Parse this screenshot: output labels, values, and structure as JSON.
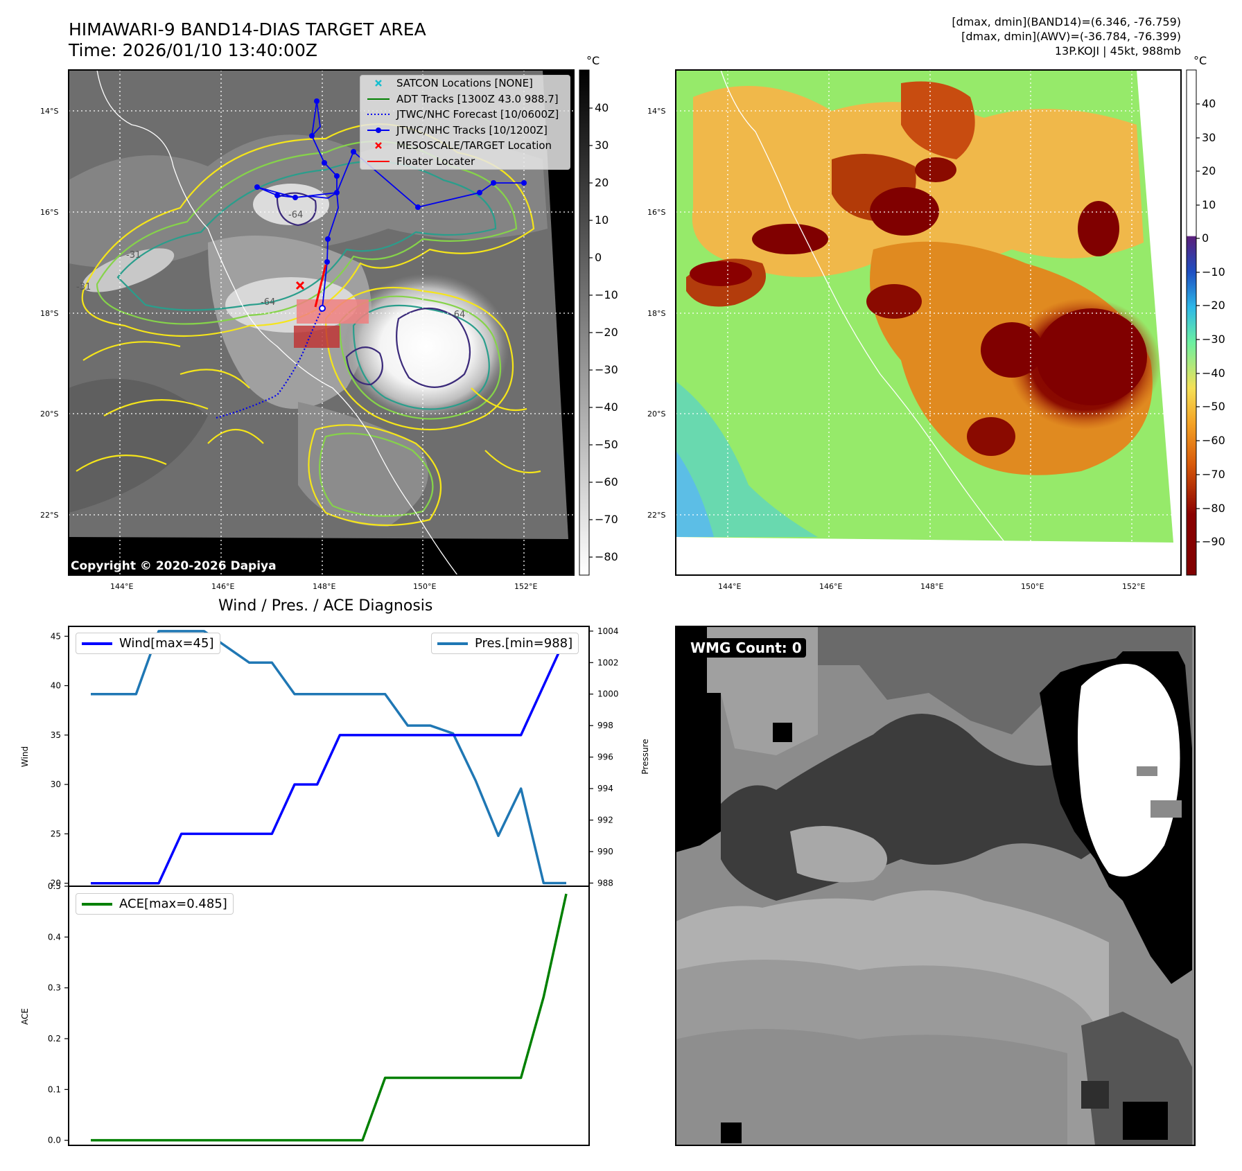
{
  "header": {
    "title_line1": "HIMAWARI-9 BAND14-DIAS TARGET AREA",
    "title_line2": "Time: 2026/01/10 13:40:00Z",
    "info_line1": "[dmax, dmin](BAND14)=(6.346, -76.759)",
    "info_line2": "[dmax, dmin](AWV)=(-36.784, -76.399)",
    "info_line3": "13P.KOJI | 45kt, 988mb"
  },
  "map_panel": {
    "copyright": "Copyright © 2020-2026 Dapiya",
    "colorbar_unit": "°C",
    "colorbar_ticks": [
      "40",
      "30",
      "20",
      "10",
      "0",
      "−10",
      "−20",
      "−30",
      "−40",
      "−50",
      "−60",
      "−70",
      "−80"
    ],
    "lat_labels": [
      "14°S",
      "16°S",
      "18°S",
      "20°S",
      "22°S"
    ],
    "lon_labels": [
      "144°E",
      "146°E",
      "148°E",
      "150°E",
      "152°E"
    ],
    "contour_labels": [
      "-64",
      "-64",
      "-64",
      "-31",
      "-31"
    ],
    "legend": [
      {
        "label": "SATCON Locations [NONE]",
        "icon": "x-marker-cyan"
      },
      {
        "label": "ADT Tracks [1300Z 43.0 988.7]",
        "icon": "line-green"
      },
      {
        "label": "JTWC/NHC Forecast [10/0600Z]",
        "icon": "dotted-line-blue"
      },
      {
        "label": "JTWC/NHC Tracks [10/1200Z]",
        "icon": "line-marker-blue"
      },
      {
        "label": "MESOSCALE/TARGET Location",
        "icon": "x-marker-red"
      },
      {
        "label": "Floater Locater",
        "icon": "line-red"
      }
    ],
    "colors": {
      "best_track": "#0000ee",
      "adt": "#008000",
      "satcon": "#17becf",
      "target": "#ff0000"
    }
  },
  "awv_panel": {
    "colorbar_unit": "°C",
    "colorbar_ticks": [
      "40",
      "30",
      "20",
      "10",
      "0",
      "−10",
      "−20",
      "−30",
      "−40",
      "−50",
      "−60",
      "−70",
      "−80",
      "−90"
    ],
    "lat_labels": [
      "14°S",
      "16°S",
      "18°S",
      "20°S",
      "22°S"
    ],
    "lon_labels": [
      "144°E",
      "146°E",
      "148°E",
      "150°E",
      "152°E"
    ]
  },
  "wmg_panel": {
    "label": "WMG Count: 0"
  },
  "chart_data": [
    {
      "type": "line",
      "title": "Wind / Pres. / ACE Diagnosis",
      "ylabel": "Wind",
      "y2label": "Pressure",
      "x": [
        0,
        1,
        2,
        3,
        4,
        5,
        6,
        7,
        8,
        9,
        10,
        11,
        12,
        13,
        14,
        15,
        16,
        17,
        18,
        19,
        20,
        21
      ],
      "ylim": [
        19.7,
        46.0
      ],
      "y2lim": [
        987.8,
        1004.3
      ],
      "yticks": [
        "45",
        "40",
        "35",
        "30",
        "25",
        "20"
      ],
      "y2ticks": [
        "1004",
        "1002",
        "1000",
        "998",
        "996",
        "994",
        "992",
        "990",
        "988"
      ],
      "series": [
        {
          "name": "Wind[max=45]",
          "axis": "left",
          "color": "#0000ff",
          "values": [
            20,
            20,
            20,
            20,
            25,
            25,
            25,
            25,
            25,
            30,
            30,
            35,
            35,
            35,
            35,
            35,
            35,
            35,
            35,
            35,
            40,
            45
          ]
        },
        {
          "name": "Pres.[min=988]",
          "axis": "right",
          "color": "#1f77b4",
          "values": [
            1000,
            1000,
            1000,
            1004,
            1004,
            1004,
            1003,
            1002,
            1002,
            1000,
            1000,
            1000,
            1000,
            1000,
            998,
            998,
            997.5,
            994.5,
            991,
            994,
            988,
            988
          ]
        }
      ]
    },
    {
      "type": "line",
      "ylabel": "ACE",
      "x": [
        0,
        1,
        2,
        3,
        4,
        5,
        6,
        7,
        8,
        9,
        10,
        11,
        12,
        13,
        14,
        15,
        16,
        17,
        18,
        19,
        20,
        21
      ],
      "ylim": [
        -0.01,
        0.5
      ],
      "yticks": [
        "0.5",
        "0.4",
        "0.3",
        "0.2",
        "0.1",
        "0.0"
      ],
      "series": [
        {
          "name": "ACE[max=0.485]",
          "color": "#008000",
          "values": [
            0,
            0,
            0,
            0,
            0,
            0,
            0,
            0,
            0,
            0,
            0,
            0,
            0,
            0.123,
            0.123,
            0.123,
            0.123,
            0.123,
            0.123,
            0.123,
            0.282,
            0.485
          ]
        }
      ]
    }
  ]
}
